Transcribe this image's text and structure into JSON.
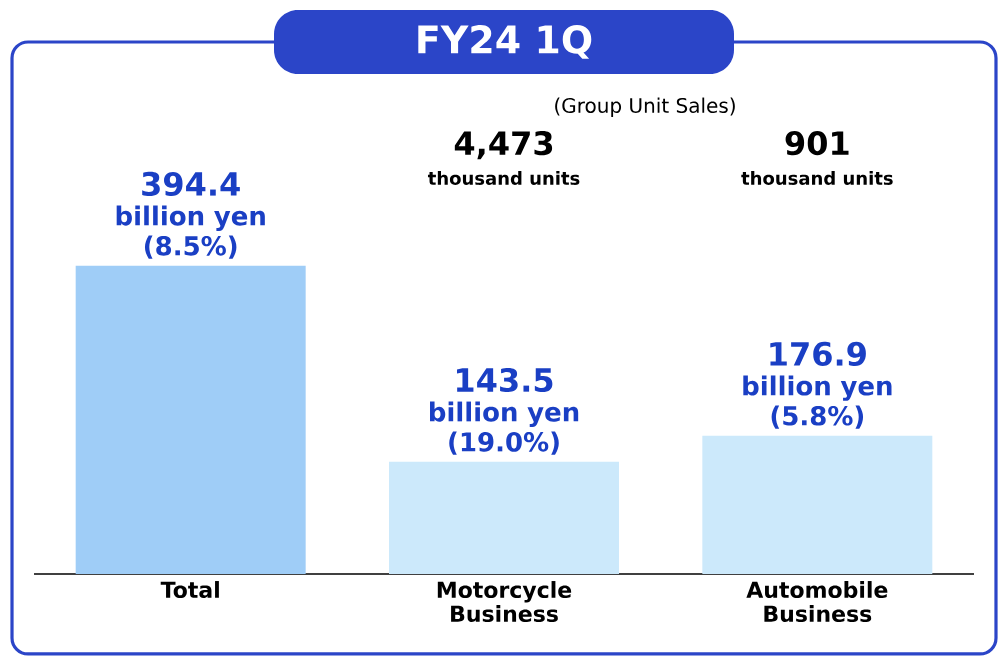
{
  "chart_data": {
    "type": "bar",
    "title": "FY24 1Q",
    "subtitle": "(Group Unit Sales)",
    "categories": [
      "Total",
      "Motorcycle Business",
      "Automobile Business"
    ],
    "values": [
      394.4,
      143.5,
      176.9
    ],
    "colors": [
      "#9fcdf7",
      "#cce9fb",
      "#cce9fb"
    ],
    "data_labels": true,
    "annotations": [
      "4,473",
      "thousand units",
      "901",
      "thousand units",
      "billion yen (8.5%)",
      "billion yen (19.0%)",
      "billion yen (5.8%)"
    ]
  }
}
